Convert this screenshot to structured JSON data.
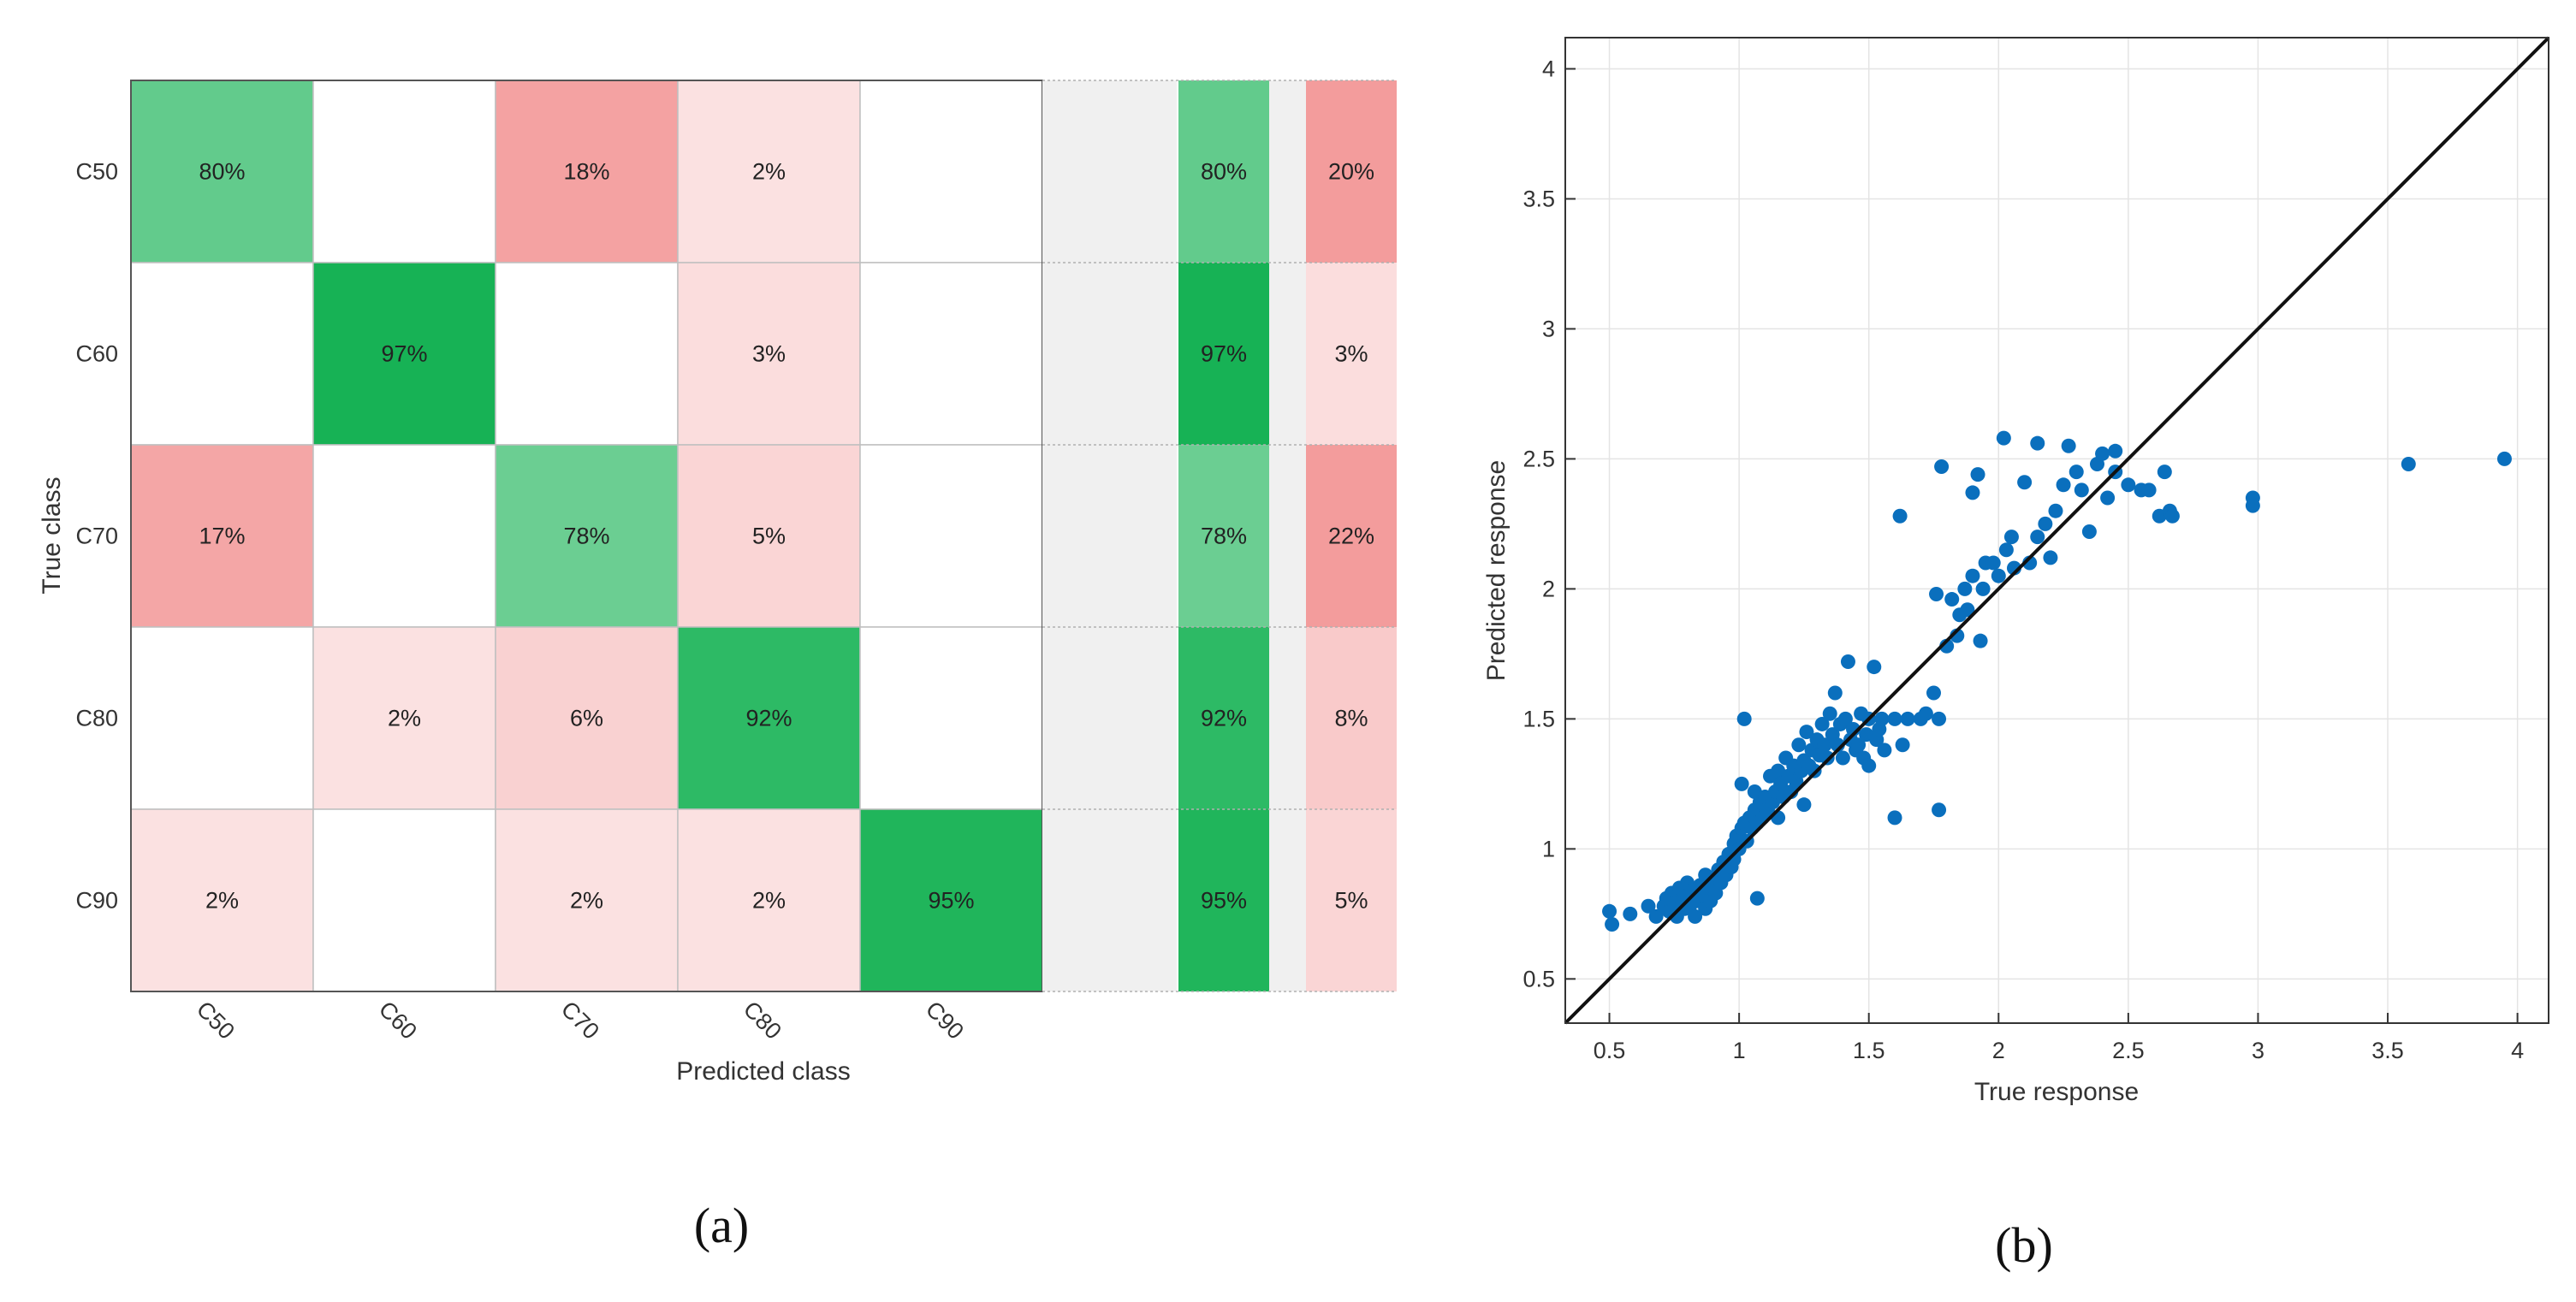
{
  "chart_data": [
    {
      "type": "heatmap",
      "panel_label": "(a)",
      "title": "",
      "xlabel": "Predicted class",
      "ylabel": "True class",
      "classes": [
        "C50",
        "C60",
        "C70",
        "C80",
        "C90"
      ],
      "matrix_percent": [
        [
          80,
          null,
          18,
          2,
          null
        ],
        [
          null,
          97,
          null,
          3,
          null
        ],
        [
          17,
          null,
          78,
          5,
          null
        ],
        [
          null,
          2,
          6,
          92,
          null
        ],
        [
          2,
          null,
          2,
          2,
          95
        ]
      ],
      "true_positive_rate_percent": [
        80,
        97,
        78,
        92,
        95
      ],
      "false_negative_rate_percent": [
        20,
        3,
        22,
        8,
        5
      ],
      "colors": {
        "correct_max": "#0aae4b",
        "error_max": "#f39c9c",
        "empty": "#ffffff",
        "separator_column": "#f0f0f0",
        "grid_line": "#bfbfbf"
      }
    },
    {
      "type": "scatter",
      "panel_label": "(b)",
      "title": "",
      "xlabel": "True response",
      "ylabel": "Predicted response",
      "xlim": [
        0.33,
        4.12
      ],
      "ylim": [
        0.33,
        4.12
      ],
      "xticks": [
        0.5,
        1,
        1.5,
        2,
        2.5,
        3,
        3.5,
        4
      ],
      "yticks": [
        0.5,
        1,
        1.5,
        2,
        2.5,
        3,
        3.5,
        4
      ],
      "xtick_labels": [
        "0.5",
        "1",
        "1.5",
        "2",
        "2.5",
        "3",
        "3.5",
        "4"
      ],
      "ytick_labels": [
        "0.5",
        "1",
        "1.5",
        "2",
        "2.5",
        "3",
        "3.5",
        "4"
      ],
      "grid": true,
      "reference_line": "y = x",
      "colors": {
        "points": "#0a6fbd",
        "reference_line": "#111111",
        "grid": "#e4e4e4",
        "axis": "#333333"
      },
      "points": [
        [
          0.5,
          0.76
        ],
        [
          0.51,
          0.71
        ],
        [
          0.58,
          0.75
        ],
        [
          0.65,
          0.78
        ],
        [
          0.68,
          0.74
        ],
        [
          0.71,
          0.78
        ],
        [
          0.72,
          0.81
        ],
        [
          0.73,
          0.76
        ],
        [
          0.74,
          0.83
        ],
        [
          0.75,
          0.79
        ],
        [
          0.76,
          0.74
        ],
        [
          0.77,
          0.85
        ],
        [
          0.78,
          0.8
        ],
        [
          0.79,
          0.77
        ],
        [
          0.8,
          0.82
        ],
        [
          0.8,
          0.87
        ],
        [
          0.81,
          0.78
        ],
        [
          0.82,
          0.84
        ],
        [
          0.83,
          0.74
        ],
        [
          0.84,
          0.8
        ],
        [
          0.85,
          0.86
        ],
        [
          0.86,
          0.82
        ],
        [
          0.87,
          0.77
        ],
        [
          0.87,
          0.9
        ],
        [
          0.88,
          0.85
        ],
        [
          0.89,
          0.8
        ],
        [
          0.9,
          0.88
        ],
        [
          0.91,
          0.83
        ],
        [
          0.92,
          0.92
        ],
        [
          0.93,
          0.87
        ],
        [
          0.94,
          0.95
        ],
        [
          0.95,
          0.9
        ],
        [
          0.96,
          0.98
        ],
        [
          0.97,
          0.93
        ],
        [
          0.98,
          1.02
        ],
        [
          0.98,
          0.96
        ],
        [
          0.99,
          1.05
        ],
        [
          1.0,
          1.0
        ],
        [
          1.01,
          1.08
        ],
        [
          1.01,
          1.25
        ],
        [
          1.02,
          1.1
        ],
        [
          1.02,
          1.5
        ],
        [
          1.03,
          1.03
        ],
        [
          1.04,
          1.12
        ],
        [
          1.05,
          1.08
        ],
        [
          1.06,
          1.15
        ],
        [
          1.06,
          1.22
        ],
        [
          1.07,
          1.1
        ],
        [
          1.07,
          0.81
        ],
        [
          1.08,
          1.18
        ],
        [
          1.09,
          1.12
        ],
        [
          1.1,
          1.2
        ],
        [
          1.11,
          1.15
        ],
        [
          1.12,
          1.28
        ],
        [
          1.13,
          1.18
        ],
        [
          1.14,
          1.22
        ],
        [
          1.15,
          1.3
        ],
        [
          1.15,
          1.12
        ],
        [
          1.16,
          1.25
        ],
        [
          1.17,
          1.2
        ],
        [
          1.18,
          1.35
        ],
        [
          1.19,
          1.28
        ],
        [
          1.2,
          1.22
        ],
        [
          1.21,
          1.32
        ],
        [
          1.22,
          1.26
        ],
        [
          1.23,
          1.4
        ],
        [
          1.24,
          1.3
        ],
        [
          1.25,
          1.34
        ],
        [
          1.25,
          1.17
        ],
        [
          1.26,
          1.45
        ],
        [
          1.27,
          1.32
        ],
        [
          1.28,
          1.38
        ],
        [
          1.29,
          1.3
        ],
        [
          1.3,
          1.42
        ],
        [
          1.31,
          1.36
        ],
        [
          1.32,
          1.48
        ],
        [
          1.33,
          1.4
        ],
        [
          1.34,
          1.35
        ],
        [
          1.35,
          1.52
        ],
        [
          1.36,
          1.44
        ],
        [
          1.37,
          1.6
        ],
        [
          1.38,
          1.4
        ],
        [
          1.39,
          1.48
        ],
        [
          1.4,
          1.35
        ],
        [
          1.41,
          1.5
        ],
        [
          1.42,
          1.72
        ],
        [
          1.43,
          1.42
        ],
        [
          1.44,
          1.46
        ],
        [
          1.45,
          1.38
        ],
        [
          1.46,
          1.4
        ],
        [
          1.47,
          1.52
        ],
        [
          1.48,
          1.35
        ],
        [
          1.49,
          1.44
        ],
        [
          1.5,
          1.5
        ],
        [
          1.5,
          1.32
        ],
        [
          1.52,
          1.7
        ],
        [
          1.53,
          1.42
        ],
        [
          1.54,
          1.46
        ],
        [
          1.55,
          1.5
        ],
        [
          1.56,
          1.38
        ],
        [
          1.6,
          1.12
        ],
        [
          1.6,
          1.5
        ],
        [
          1.62,
          2.28
        ],
        [
          1.63,
          1.4
        ],
        [
          1.65,
          1.5
        ],
        [
          1.7,
          1.5
        ],
        [
          1.72,
          1.52
        ],
        [
          1.75,
          1.6
        ],
        [
          1.77,
          1.5
        ],
        [
          1.77,
          1.15
        ],
        [
          1.76,
          1.98
        ],
        [
          1.78,
          2.47
        ],
        [
          1.8,
          1.78
        ],
        [
          1.82,
          1.96
        ],
        [
          1.84,
          1.82
        ],
        [
          1.85,
          1.9
        ],
        [
          1.87,
          2.0
        ],
        [
          1.88,
          1.92
        ],
        [
          1.9,
          2.05
        ],
        [
          1.9,
          2.37
        ],
        [
          1.92,
          2.44
        ],
        [
          1.93,
          1.8
        ],
        [
          1.94,
          2.0
        ],
        [
          1.95,
          2.1
        ],
        [
          1.98,
          2.1
        ],
        [
          2.0,
          2.05
        ],
        [
          2.02,
          2.58
        ],
        [
          2.03,
          2.15
        ],
        [
          2.05,
          2.2
        ],
        [
          2.06,
          2.08
        ],
        [
          2.1,
          2.41
        ],
        [
          2.12,
          2.1
        ],
        [
          2.15,
          2.2
        ],
        [
          2.15,
          2.56
        ],
        [
          2.18,
          2.25
        ],
        [
          2.2,
          2.12
        ],
        [
          2.22,
          2.3
        ],
        [
          2.25,
          2.4
        ],
        [
          2.27,
          2.55
        ],
        [
          2.3,
          2.45
        ],
        [
          2.32,
          2.38
        ],
        [
          2.35,
          2.22
        ],
        [
          2.38,
          2.48
        ],
        [
          2.4,
          2.52
        ],
        [
          2.42,
          2.35
        ],
        [
          2.45,
          2.53
        ],
        [
          2.45,
          2.45
        ],
        [
          2.5,
          2.4
        ],
        [
          2.55,
          2.38
        ],
        [
          2.58,
          2.38
        ],
        [
          2.62,
          2.28
        ],
        [
          2.64,
          2.45
        ],
        [
          2.66,
          2.3
        ],
        [
          2.67,
          2.28
        ],
        [
          2.98,
          2.35
        ],
        [
          2.98,
          2.32
        ],
        [
          3.58,
          2.48
        ],
        [
          3.95,
          2.5
        ]
      ]
    }
  ]
}
